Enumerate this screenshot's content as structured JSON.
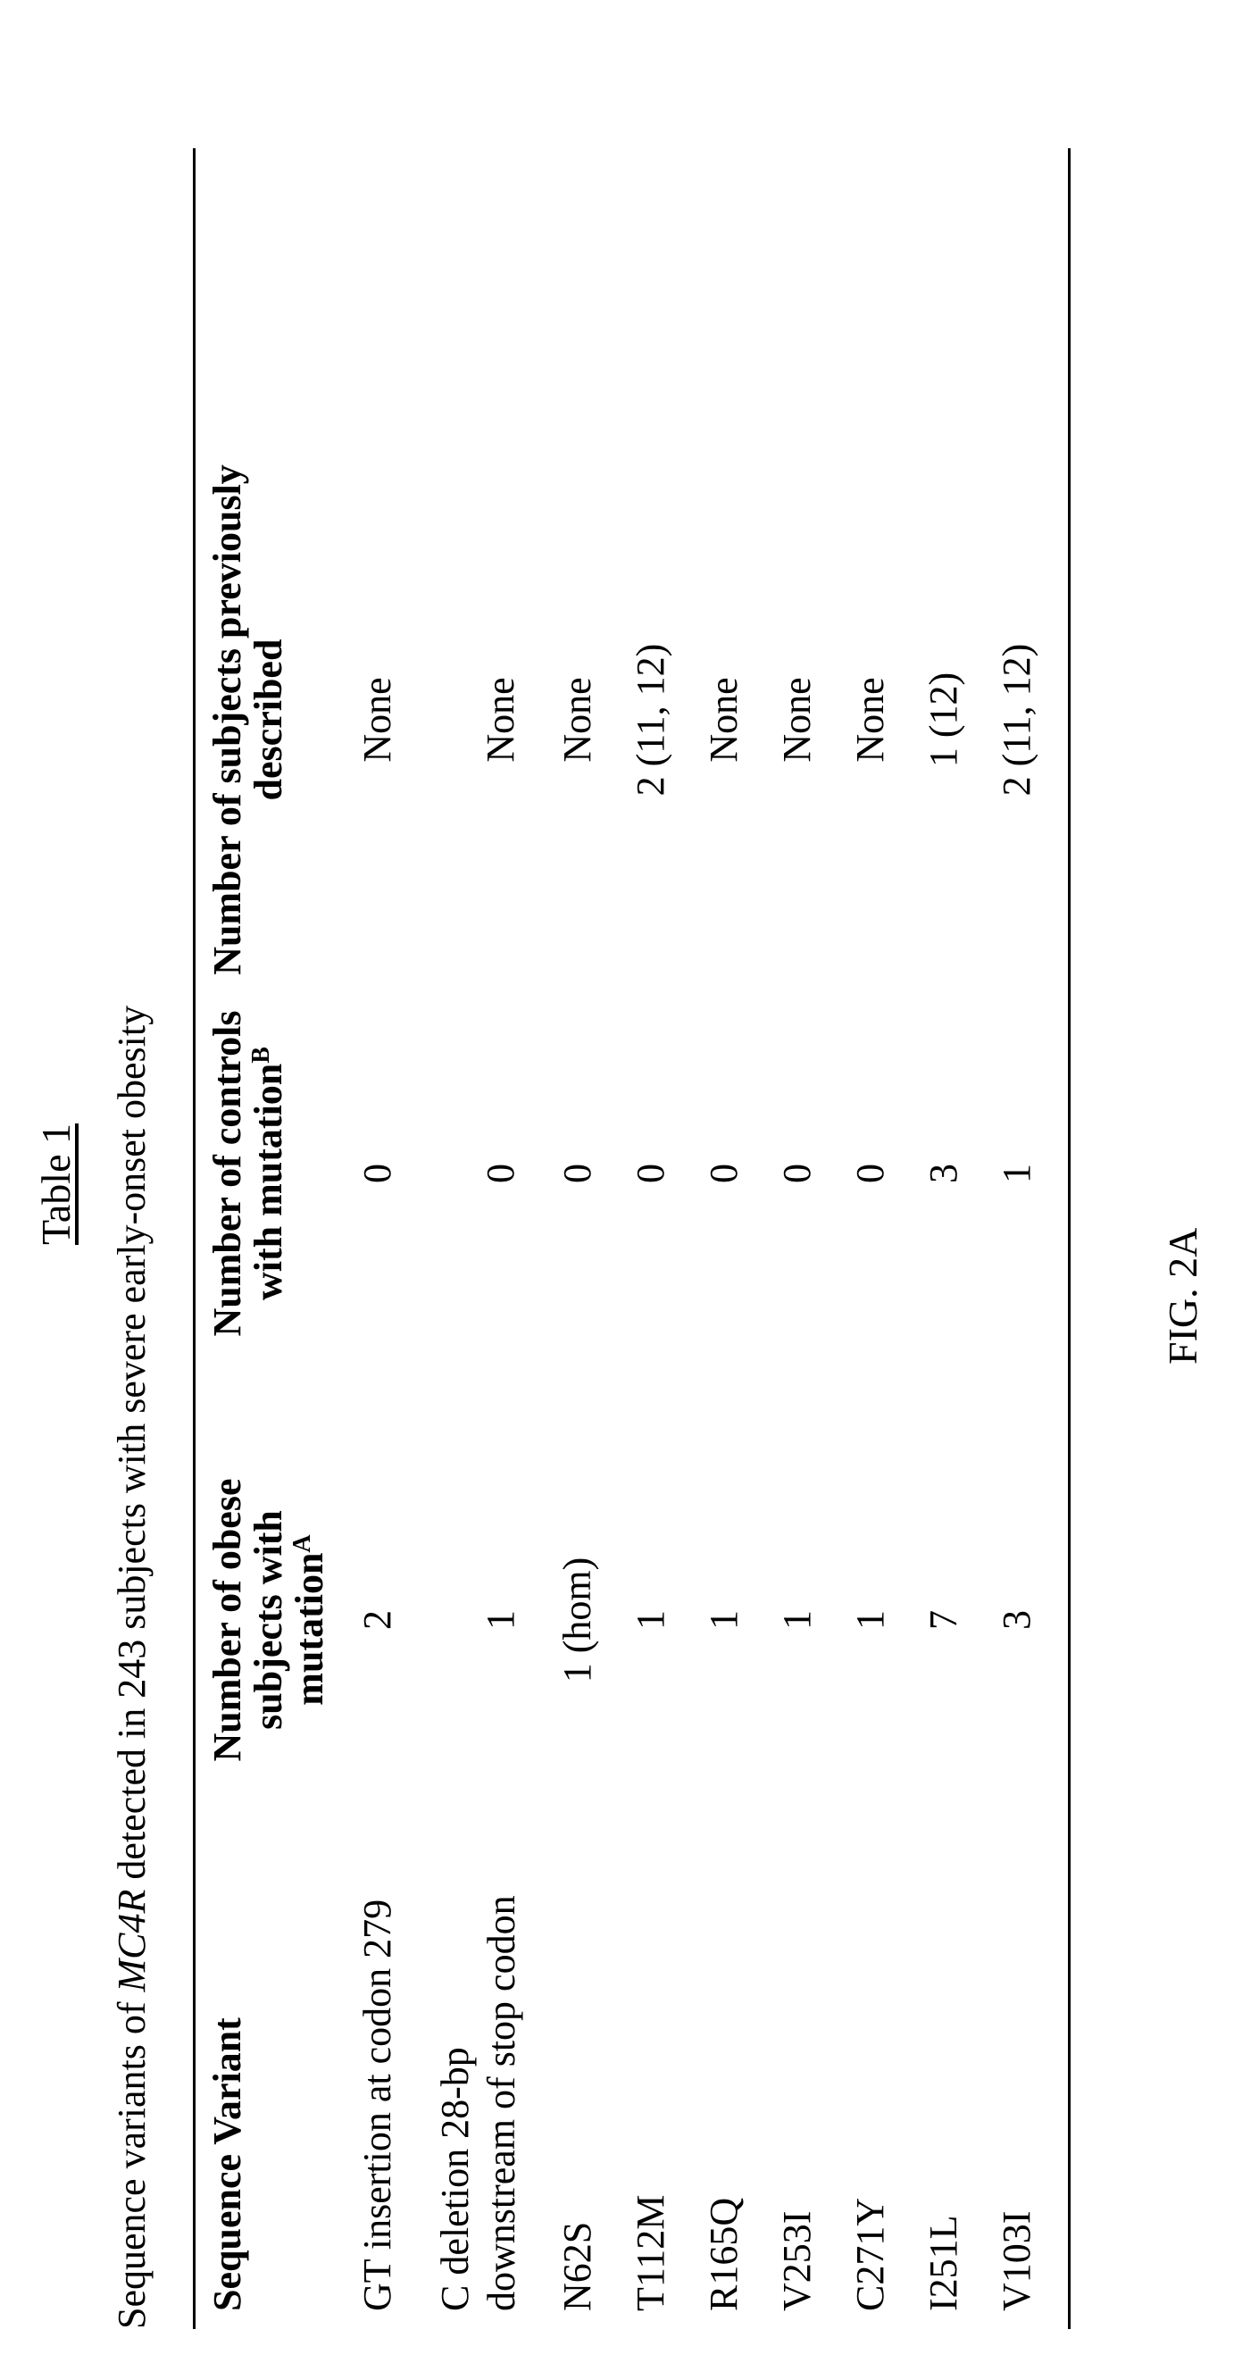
{
  "table_title": "Table 1",
  "caption": {
    "before": "Sequence variants of ",
    "gene": "MC4R",
    "after": " detected in 243 subjects with severe early-onset obesity"
  },
  "headers": {
    "variant": "Sequence Variant",
    "obese": "Number of obese subjects with mutation",
    "obese_sup": "A",
    "controls": "Number of controls with mutation",
    "controls_sup": "B",
    "previous": "Number of subjects previously described"
  },
  "rows": [
    {
      "variant": "GT insertion at codon 279",
      "obese": "2",
      "controls": "0",
      "previous": "None"
    },
    {
      "variant": "C deletion 28-bp downstream of stop codon",
      "obese": "1",
      "controls": "0",
      "previous": "None"
    },
    {
      "variant": "N62S",
      "obese": "1 (hom)",
      "controls": "0",
      "previous": "None"
    },
    {
      "variant": "T112M",
      "obese": "1",
      "controls": "0",
      "previous": "2 (11, 12)"
    },
    {
      "variant": "R165Q",
      "obese": "1",
      "controls": "0",
      "previous": "None"
    },
    {
      "variant": "V253I",
      "obese": "1",
      "controls": "0",
      "previous": "None"
    },
    {
      "variant": "C271Y",
      "obese": "1",
      "controls": "0",
      "previous": "None"
    },
    {
      "variant": "I251L",
      "obese": "7",
      "controls": "3",
      "previous": "1 (12)"
    },
    {
      "variant": "V103I",
      "obese": "3",
      "controls": "1",
      "previous": "2 (11, 12)"
    }
  ],
  "figure_label": "FIG. 2A"
}
